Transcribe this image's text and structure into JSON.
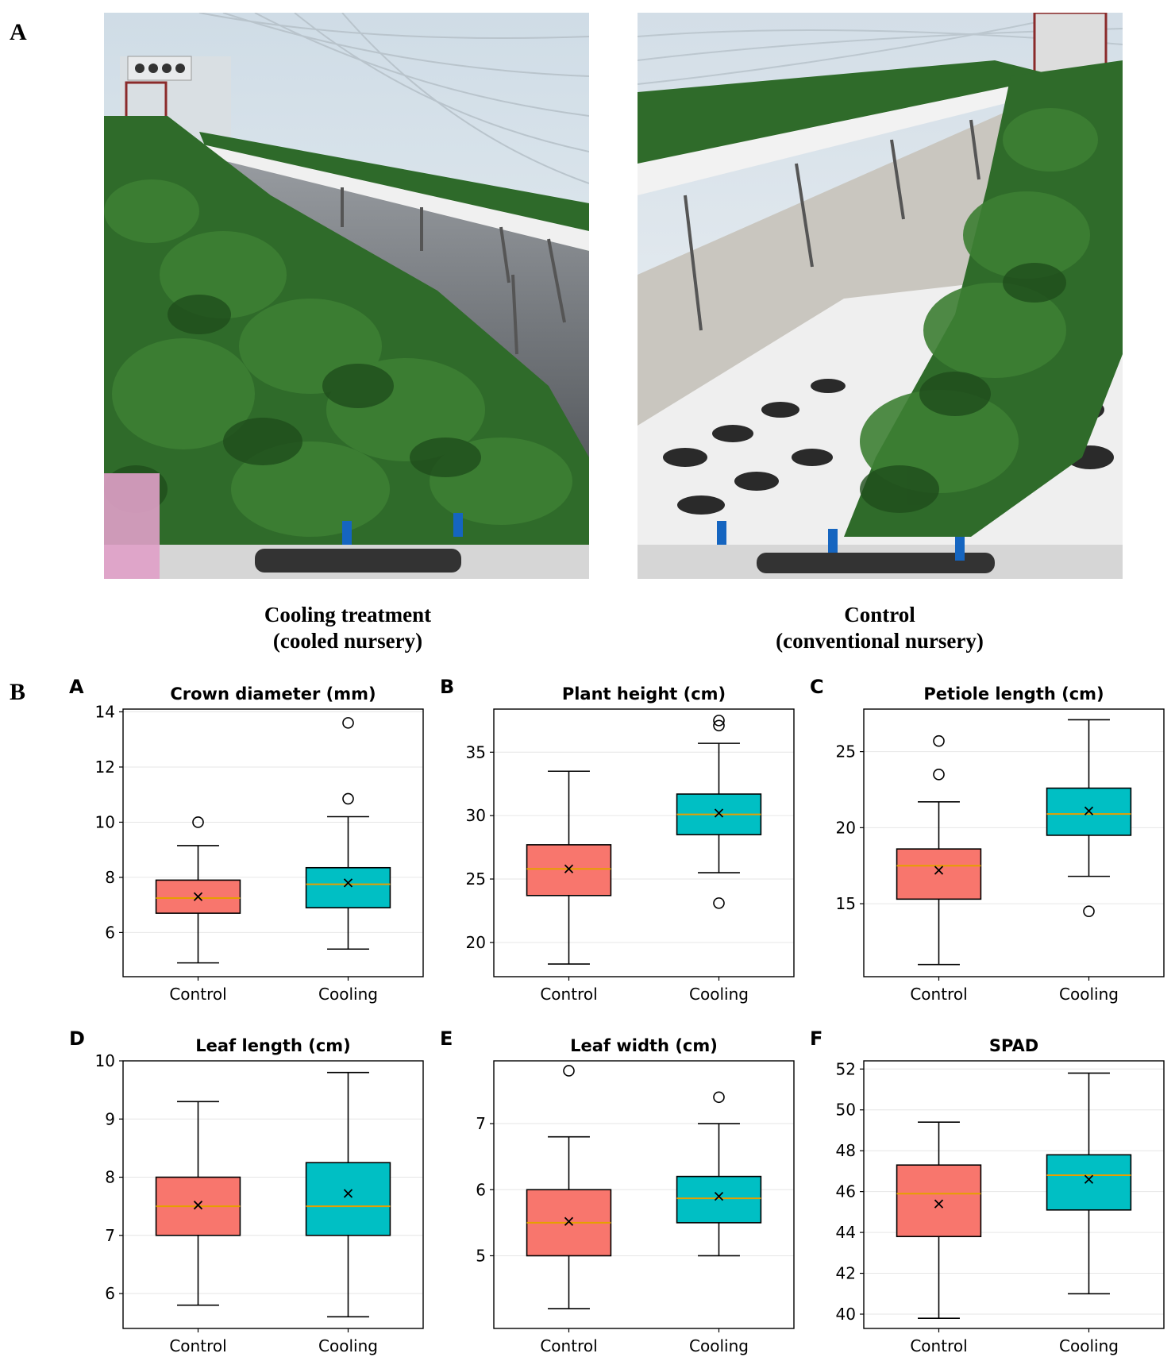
{
  "figure": {
    "panel_a_letter": "A",
    "panel_b_letter": "B"
  },
  "photos": [
    {
      "caption_line1": "Cooling treatment",
      "caption_line2": "(cooled nursery)"
    },
    {
      "caption_line1": "Control",
      "caption_line2": "(conventional nursery)"
    }
  ],
  "colors": {
    "control": "#F8766D",
    "cooling": "#00BFC4",
    "median": "#E69F00",
    "plant_green": "#2f6b2a",
    "greenhouse_sky": "#dfe8ee"
  },
  "chart_data": [
    {
      "type": "box",
      "letter": "A",
      "title": "Crown diameter (mm)",
      "categories": [
        "Control",
        "Cooling"
      ],
      "ylim": [
        4.4,
        14.1
      ],
      "yticks": [
        6,
        8,
        10,
        12,
        14
      ],
      "boxes": [
        {
          "whisker_low": 4.9,
          "q1": 6.7,
          "median": 7.25,
          "q3": 7.9,
          "whisker_high": 9.15,
          "mean": 7.3,
          "outliers": [
            10.0
          ]
        },
        {
          "whisker_low": 5.4,
          "q1": 6.9,
          "median": 7.75,
          "q3": 8.35,
          "whisker_high": 10.2,
          "mean": 7.8,
          "outliers": [
            10.85,
            13.6
          ]
        }
      ]
    },
    {
      "type": "box",
      "letter": "B",
      "title": "Plant height (cm)",
      "categories": [
        "Control",
        "Cooling"
      ],
      "ylim": [
        17.3,
        38.4
      ],
      "yticks": [
        20,
        25,
        30,
        35
      ],
      "boxes": [
        {
          "whisker_low": 18.3,
          "q1": 23.7,
          "median": 25.8,
          "q3": 27.7,
          "whisker_high": 33.5,
          "mean": 25.8,
          "outliers": []
        },
        {
          "whisker_low": 25.5,
          "q1": 28.5,
          "median": 30.1,
          "q3": 31.7,
          "whisker_high": 35.7,
          "mean": 30.2,
          "outliers": [
            23.1,
            37.1,
            37.5
          ]
        }
      ]
    },
    {
      "type": "box",
      "letter": "C",
      "title": "Petiole length (cm)",
      "categories": [
        "Control",
        "Cooling"
      ],
      "ylim": [
        10.2,
        27.8
      ],
      "yticks": [
        15,
        20,
        25
      ],
      "boxes": [
        {
          "whisker_low": 11.0,
          "q1": 15.3,
          "median": 17.5,
          "q3": 18.6,
          "whisker_high": 21.7,
          "mean": 17.2,
          "outliers": [
            23.5,
            25.7
          ]
        },
        {
          "whisker_low": 16.8,
          "q1": 19.5,
          "median": 20.9,
          "q3": 22.6,
          "whisker_high": 27.1,
          "mean": 21.1,
          "outliers": [
            14.5
          ]
        }
      ]
    },
    {
      "type": "box",
      "letter": "D",
      "title": "Leaf length (cm)",
      "categories": [
        "Control",
        "Cooling"
      ],
      "ylim": [
        5.4,
        10.0
      ],
      "yticks": [
        6,
        7,
        8,
        9,
        10
      ],
      "boxes": [
        {
          "whisker_low": 5.8,
          "q1": 7.0,
          "median": 7.5,
          "q3": 8.0,
          "whisker_high": 9.3,
          "mean": 7.52,
          "outliers": []
        },
        {
          "whisker_low": 5.6,
          "q1": 7.0,
          "median": 7.5,
          "q3": 8.25,
          "whisker_high": 9.8,
          "mean": 7.72,
          "outliers": []
        }
      ]
    },
    {
      "type": "box",
      "letter": "E",
      "title": "Leaf width (cm)",
      "categories": [
        "Control",
        "Cooling"
      ],
      "ylim": [
        3.9,
        7.95
      ],
      "yticks": [
        5,
        6,
        7
      ],
      "boxes": [
        {
          "whisker_low": 4.2,
          "q1": 5.0,
          "median": 5.5,
          "q3": 6.0,
          "whisker_high": 6.8,
          "mean": 5.52,
          "outliers": [
            7.8
          ]
        },
        {
          "whisker_low": 5.0,
          "q1": 5.5,
          "median": 5.87,
          "q3": 6.2,
          "whisker_high": 7.0,
          "mean": 5.9,
          "outliers": [
            7.4
          ]
        }
      ]
    },
    {
      "type": "box",
      "letter": "F",
      "title": "SPAD",
      "categories": [
        "Control",
        "Cooling"
      ],
      "ylim": [
        39.3,
        52.4
      ],
      "yticks": [
        40,
        42,
        44,
        46,
        48,
        50,
        52
      ],
      "boxes": [
        {
          "whisker_low": 39.8,
          "q1": 43.8,
          "median": 45.9,
          "q3": 47.3,
          "whisker_high": 49.4,
          "mean": 45.4,
          "outliers": []
        },
        {
          "whisker_low": 41.0,
          "q1": 45.1,
          "median": 46.8,
          "q3": 47.8,
          "whisker_high": 51.8,
          "mean": 46.6,
          "outliers": []
        }
      ]
    }
  ]
}
